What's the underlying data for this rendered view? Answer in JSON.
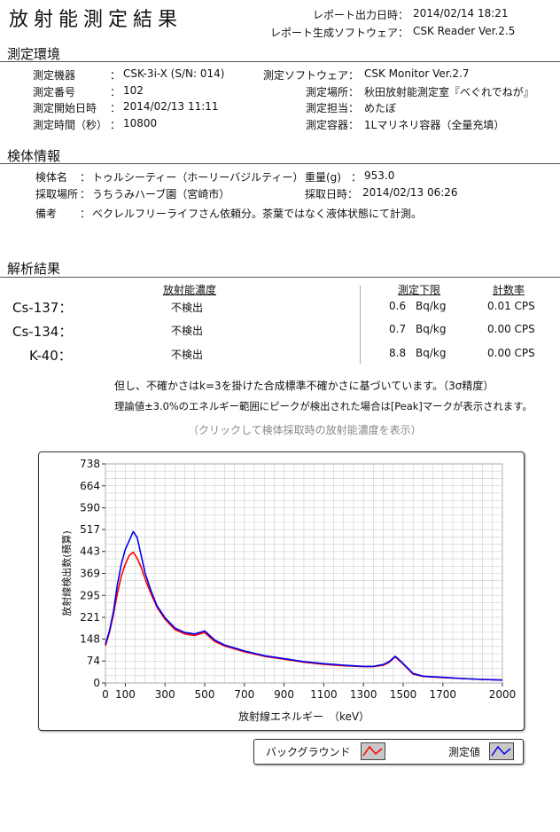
{
  "header": {
    "title": "放射能測定結果",
    "report_time_label": "レポート出力日時：",
    "report_time": "2014/02/14 18:21",
    "software_label": "レポート生成ソフトウェア：",
    "software": "CSK Reader Ver.2.5"
  },
  "env": {
    "heading": "測定環境",
    "device_label": "測定機器",
    "device": "CSK-3i-X (S/N: 014)",
    "number_label": "測定番号",
    "number": "102",
    "start_label": "測定開始日時",
    "start": "2014/02/13 11:11",
    "duration_label": "測定時間（秒）",
    "duration": "10800",
    "msoft_label": "測定ソフトウェア：",
    "msoft": "CSK Monitor Ver.2.7",
    "place_label": "測定場所：",
    "place": "秋田放射能測定室『べぐれでねが』",
    "staff_label": "測定担当：",
    "staff": "めたぼ",
    "container_label": "測定容器：",
    "container": "1Lマリネリ容器（全量充填）",
    "colon": "："
  },
  "sample": {
    "heading": "検体情報",
    "name_label": "検体名",
    "name": "トゥルシーティー（ホーリーバジルティー）",
    "site_label": "採取場所",
    "site": "うちうみハーブ園（宮崎市）",
    "note_label": "備考",
    "note": "ベクレルフリーライフさん依頼分。茶葉ではなく液体状態にて計測。",
    "weight_label": "重量(g)",
    "weight": "953.0",
    "date_label": "採取日時：",
    "date": "2014/02/13 06:26",
    "colon": "："
  },
  "results": {
    "heading": "解析結果",
    "col_conc": "放射能濃度",
    "col_limit": "測定下限",
    "col_rate": "計数率",
    "rows": [
      {
        "iso": "Cs-137：",
        "conc": "不検出",
        "limit": "0.6",
        "unit": "Bq/kg",
        "rate": "0.01 CPS"
      },
      {
        "iso": "Cs-134：",
        "conc": "不検出",
        "limit": "0.7",
        "unit": "Bq/kg",
        "rate": "0.00 CPS"
      },
      {
        "iso": "K-40：",
        "conc": "不検出",
        "limit": "8.8",
        "unit": "Bq/kg",
        "rate": "0.00 CPS"
      }
    ],
    "note1": "但し、不確かさはk=3を掛けた合成標準不確かさに基づいています。（3σ精度）",
    "note2": "理論値±3.0%のエネルギー範囲にピークが検出された場合は[Peak]マークが表示されます。",
    "hint": "（クリックして検体採取時の放射能濃度を表示）"
  },
  "colors": {
    "background": "#ff0000",
    "measured": "#0000ee",
    "grid": "#cccccc"
  },
  "chart_data": {
    "type": "line",
    "xlabel": "放射線エネルギー　（keV）",
    "ylabel": "放射線検出数(積算)",
    "xlim": [
      0,
      2000
    ],
    "ylim": [
      0,
      738
    ],
    "x_ticks": [
      0,
      100,
      300,
      500,
      700,
      900,
      1100,
      1300,
      1500,
      1700,
      2000
    ],
    "y_ticks": [
      0,
      74,
      148,
      221,
      295,
      369,
      443,
      517,
      590,
      664,
      738
    ],
    "grid": true,
    "legend_position": "bottom-right",
    "series": [
      {
        "name": "バックグラウンド",
        "x": [
          0,
          20,
          40,
          60,
          80,
          100,
          120,
          140,
          160,
          180,
          200,
          230,
          260,
          300,
          350,
          400,
          450,
          500,
          550,
          600,
          650,
          700,
          800,
          900,
          1000,
          1100,
          1200,
          1300,
          1350,
          1400,
          1430,
          1460,
          1490,
          1520,
          1550,
          1600,
          1700,
          1800,
          1900,
          2000
        ],
        "y": [
          125,
          170,
          230,
          300,
          360,
          400,
          430,
          440,
          420,
          390,
          350,
          300,
          255,
          215,
          180,
          165,
          160,
          170,
          140,
          125,
          115,
          105,
          90,
          80,
          70,
          63,
          58,
          55,
          55,
          60,
          70,
          88,
          70,
          50,
          30,
          22,
          18,
          15,
          12,
          10
        ]
      },
      {
        "name": "測定値",
        "x": [
          0,
          20,
          40,
          60,
          80,
          100,
          120,
          140,
          160,
          180,
          200,
          230,
          260,
          300,
          350,
          400,
          450,
          500,
          550,
          600,
          650,
          700,
          800,
          900,
          1000,
          1100,
          1200,
          1300,
          1350,
          1400,
          1430,
          1460,
          1490,
          1520,
          1550,
          1600,
          1700,
          1800,
          1900,
          2000
        ],
        "y": [
          130,
          175,
          240,
          330,
          400,
          450,
          480,
          510,
          490,
          430,
          370,
          310,
          260,
          220,
          185,
          170,
          165,
          175,
          145,
          128,
          118,
          108,
          92,
          82,
          72,
          65,
          60,
          56,
          56,
          62,
          72,
          90,
          72,
          52,
          32,
          23,
          19,
          15,
          12,
          10
        ]
      }
    ]
  }
}
